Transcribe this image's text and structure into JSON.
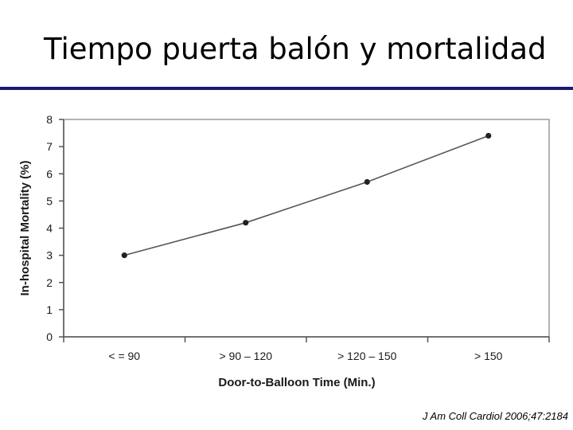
{
  "slide": {
    "title": "Tiempo puerta balón y mortalidad",
    "citation": "J Am Coll Cardiol 2006;47:2184",
    "rule_color": "#1f1a6e"
  },
  "chart_data": {
    "type": "line",
    "categories": [
      "< = 90",
      "> 90 – 120",
      "> 120 – 150",
      "> 150"
    ],
    "series": [
      {
        "values": [
          3.0,
          4.2,
          5.7,
          7.4
        ]
      }
    ],
    "xlabel": "Door-to-Balloon Time (Min.)",
    "ylabel": "In-hospital Mortality (%)",
    "ylim": [
      0,
      8
    ],
    "yticks": [
      0,
      1,
      2,
      3,
      4,
      5,
      6,
      7,
      8
    ],
    "grid": false,
    "line_color": "#555555"
  }
}
